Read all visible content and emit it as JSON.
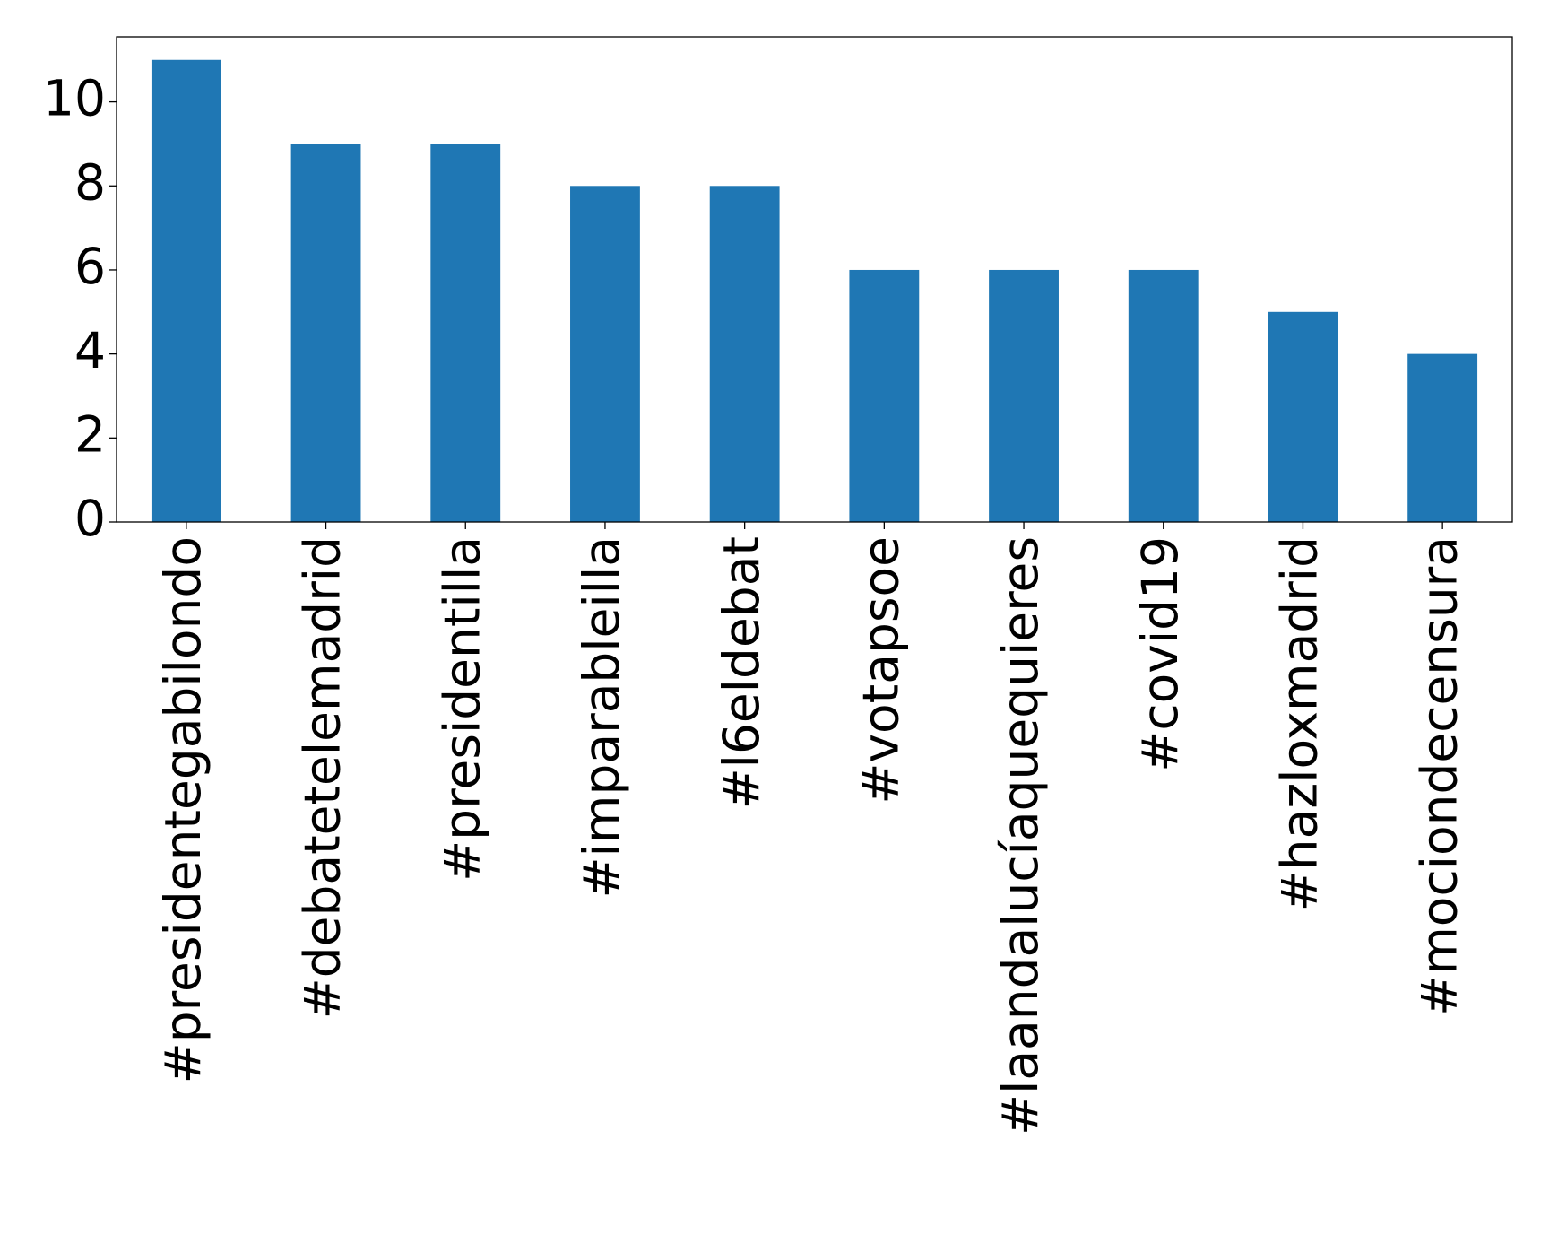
{
  "chart_data": {
    "type": "bar",
    "categories": [
      "#presidentegabilondo",
      "#debatetelemadrid",
      "#presidentilla",
      "#imparableilla",
      "#l6eldebat",
      "#votapsoe",
      "#laandalucíaquequieres",
      "#covid19",
      "#hazloxmadrid",
      "#mociondecensura"
    ],
    "values": [
      11,
      9,
      9,
      8,
      8,
      6,
      6,
      6,
      5,
      4
    ],
    "color": "#1f77b4",
    "ylim": [
      0,
      11.55
    ],
    "yticks": [
      0,
      2,
      4,
      6,
      8,
      10
    ],
    "grid": false
  }
}
